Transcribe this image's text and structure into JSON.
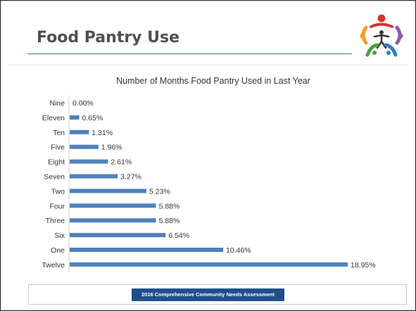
{
  "slide": {
    "title": "Food Pantry Use",
    "footer_banner": "2016 Comprehensive Community Needs Assessment",
    "logo_icon": "community-people-icon"
  },
  "colors": {
    "bar": "#4f81bd",
    "title_text": "#505050",
    "title_rule": "#3f6fa8",
    "footer_banner_bg": "#1f4f8b",
    "logo_red": "#d9342b",
    "logo_orange": "#f39c26",
    "logo_green": "#47a23f",
    "logo_purple": "#8b5ca8",
    "logo_blue": "#2b7fc1"
  },
  "chart_data": {
    "type": "bar",
    "orientation": "horizontal",
    "title": "Number of Months Food Pantry Used in Last Year",
    "categories": [
      "Nine",
      "Eleven",
      "Ten",
      "Five",
      "Eight",
      "Seven",
      "Two",
      "Four",
      "Three",
      "Six",
      "One",
      "Twelve"
    ],
    "values": [
      0.0,
      0.65,
      1.31,
      1.96,
      2.61,
      3.27,
      5.23,
      5.88,
      5.88,
      6.54,
      10.46,
      18.95
    ],
    "data_labels": [
      "0.00%",
      "0.65%",
      "1.31%",
      "1.96%",
      "2.61%",
      "3.27%",
      "5.23%",
      "5.88%",
      "5.88%",
      "6.54%",
      "10.46%",
      "18.95%"
    ],
    "value_unit": "%",
    "xlim": [
      0,
      18.95
    ],
    "grid": false,
    "legend": "none"
  }
}
